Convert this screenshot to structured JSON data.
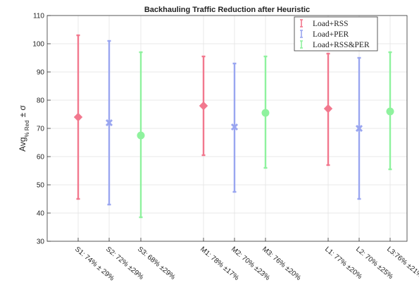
{
  "chart_data": {
    "type": "errorbar",
    "title": "Backhauling Traffic Reduction after Heuristic",
    "ylabel": {
      "main": "Avg",
      "sub": "% Red",
      "suffix": "± σ"
    },
    "xlabel": "",
    "ylim": [
      30,
      110
    ],
    "yticks": [
      30,
      40,
      50,
      60,
      70,
      80,
      90,
      100,
      110
    ],
    "grid": true,
    "legend_position": "top-right",
    "series": [
      {
        "name": "Load+RSS",
        "color": "#f2788e",
        "marker": "diamond"
      },
      {
        "name": "Load+PER",
        "color": "#9aa6f0",
        "marker": "x"
      },
      {
        "name": "Load+RSS&PER",
        "color": "#8ff29e",
        "marker": "circle"
      }
    ],
    "points": [
      {
        "label": "S1: 74% ± 29%",
        "series": 0,
        "group": 0,
        "mean": 74,
        "low": 45,
        "high": 103
      },
      {
        "label": "S2: 72% ±29%",
        "series": 1,
        "group": 0,
        "mean": 72,
        "low": 43,
        "high": 101
      },
      {
        "label": "S3: 68% ±29%",
        "series": 2,
        "group": 0,
        "mean": 67.5,
        "low": 38.5,
        "high": 97
      },
      {
        "label": "M1: 78% ±17%",
        "series": 0,
        "group": 1,
        "mean": 78,
        "low": 60.5,
        "high": 95.5
      },
      {
        "label": "M2: 70% ±23%",
        "series": 1,
        "group": 1,
        "mean": 70.5,
        "low": 47.5,
        "high": 93
      },
      {
        "label": "M3: 76% ±20%",
        "series": 2,
        "group": 1,
        "mean": 75.5,
        "low": 56,
        "high": 95.5
      },
      {
        "label": "L1: 77% ±20%",
        "series": 0,
        "group": 2,
        "mean": 77,
        "low": 57,
        "high": 96.5
      },
      {
        "label": "L2: 70% ±25%",
        "series": 1,
        "group": 2,
        "mean": 70,
        "low": 45,
        "high": 95
      },
      {
        "label": "L3:76% ±21%",
        "series": 2,
        "group": 2,
        "mean": 76,
        "low": 55.5,
        "high": 97
      }
    ]
  }
}
